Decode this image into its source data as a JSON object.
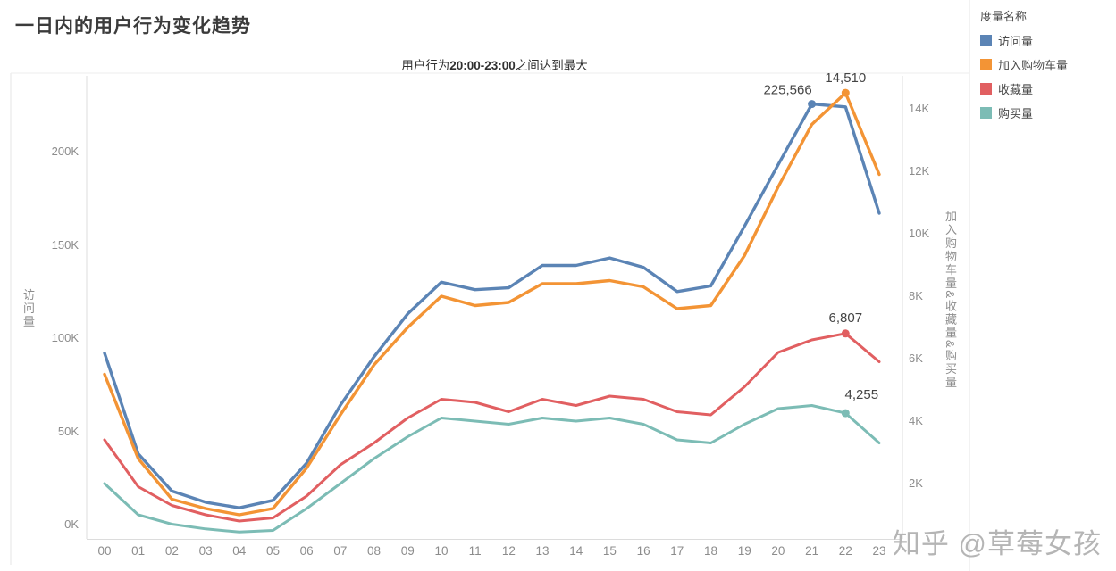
{
  "page": {
    "watermark": "知乎 @草莓女孩"
  },
  "legend": {
    "title": "度量名称",
    "items": [
      {
        "label": "访问量",
        "color": "#5b84b5"
      },
      {
        "label": "加入购物车量",
        "color": "#f39435"
      },
      {
        "label": "收藏量",
        "color": "#e15f61"
      },
      {
        "label": "购买量",
        "color": "#7cbcb5"
      }
    ]
  },
  "chart_data": {
    "type": "line",
    "title": "一日内的用户行为变化趋势",
    "subtitle": "用户行为20:00-23:00之间达到最大",
    "subtitle_parts": {
      "prefix": "用户行为",
      "bold": "20:00-23:00",
      "suffix": "之间达到最大"
    },
    "x": [
      "00",
      "01",
      "02",
      "03",
      "04",
      "05",
      "06",
      "07",
      "08",
      "09",
      "10",
      "11",
      "12",
      "13",
      "14",
      "15",
      "16",
      "17",
      "18",
      "19",
      "20",
      "21",
      "22",
      "23"
    ],
    "left_axis": {
      "label": "访问量",
      "range": [
        0,
        240000
      ],
      "ticks": [
        {
          "label": "0K",
          "value": 0
        },
        {
          "label": "50K",
          "value": 50000
        },
        {
          "label": "100K",
          "value": 100000
        },
        {
          "label": "150K",
          "value": 150000
        },
        {
          "label": "200K",
          "value": 200000
        }
      ]
    },
    "right_axis": {
      "label": "加入购物车量&收藏量&购买量",
      "range": [
        0,
        15000
      ],
      "ticks": [
        {
          "label": "2K",
          "value": 2000
        },
        {
          "label": "4K",
          "value": 4000
        },
        {
          "label": "6K",
          "value": 6000
        },
        {
          "label": "8K",
          "value": 8000
        },
        {
          "label": "10K",
          "value": 10000
        },
        {
          "label": "12K",
          "value": 12000
        },
        {
          "label": "14K",
          "value": 14000
        }
      ]
    },
    "series": [
      {
        "key": "visits",
        "name": "访问量",
        "axis": "left",
        "color": "#5b84b5",
        "values": [
          92000,
          38000,
          18000,
          12000,
          9000,
          13000,
          33000,
          64000,
          90000,
          113000,
          130000,
          126000,
          127000,
          139000,
          139000,
          143000,
          138000,
          125000,
          128000,
          160000,
          193000,
          225566,
          224000,
          167000
        ]
      },
      {
        "key": "add-to-cart",
        "name": "加入购物车量",
        "axis": "right",
        "color": "#f39435",
        "values": [
          5500,
          2800,
          1500,
          1200,
          1000,
          1200,
          2500,
          4200,
          5800,
          7000,
          8000,
          7700,
          7800,
          8400,
          8400,
          8500,
          8300,
          7600,
          7700,
          9300,
          11500,
          13500,
          14510,
          11900
        ]
      },
      {
        "key": "favorites",
        "name": "收藏量",
        "axis": "right",
        "color": "#e15f61",
        "values": [
          3400,
          1900,
          1300,
          1000,
          800,
          900,
          1600,
          2600,
          3300,
          4100,
          4700,
          4600,
          4300,
          4700,
          4500,
          4800,
          4700,
          4300,
          4200,
          5100,
          6200,
          6600,
          6807,
          5900
        ]
      },
      {
        "key": "purchases",
        "name": "购买量",
        "axis": "right",
        "color": "#7cbcb5",
        "values": [
          2000,
          1000,
          700,
          550,
          450,
          500,
          1200,
          2000,
          2800,
          3500,
          4100,
          4000,
          3900,
          4100,
          4000,
          4100,
          3900,
          3400,
          3300,
          3900,
          4400,
          4500,
          4255,
          3300
        ]
      }
    ],
    "annotations": [
      {
        "text": "225,566",
        "series": "visits",
        "x": "21",
        "value": 225566
      },
      {
        "text": "14,510",
        "series": "add-to-cart",
        "x": "22",
        "value": 14510
      },
      {
        "text": "6,807",
        "series": "favorites",
        "x": "22",
        "value": 6807
      },
      {
        "text": "4,255",
        "series": "purchases",
        "x": "22",
        "value": 4255
      }
    ],
    "grid": false,
    "legend_position": "top-right"
  }
}
